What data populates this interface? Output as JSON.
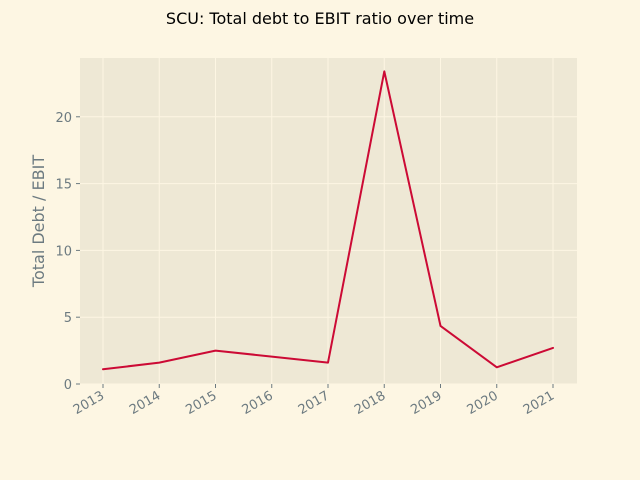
{
  "chart_data": {
    "type": "line",
    "title": "SCU: Total debt to EBIT ratio over time",
    "xlabel": "",
    "ylabel": "Total Debt / EBIT",
    "x": [
      "2013",
      "2014",
      "2015",
      "2016",
      "2017",
      "2018",
      "2019",
      "2020",
      "2021"
    ],
    "yticks": [
      "0",
      "5",
      "10",
      "15",
      "20"
    ],
    "ylim": [
      0,
      24.4
    ],
    "grid": true,
    "legend": "none",
    "series": [
      {
        "name": "",
        "values": [
          1.1,
          1.6,
          2.5,
          2.05,
          1.6,
          23.4,
          4.35,
          1.25,
          2.7
        ]
      }
    ],
    "colors": {
      "figure_bg": "#fdf6e3",
      "plot_bg": "#eee8d5",
      "grid": "#fdf6e3",
      "line": "#cc0a35",
      "tick_text": "#6c7a80",
      "title_text": "#000000"
    }
  }
}
